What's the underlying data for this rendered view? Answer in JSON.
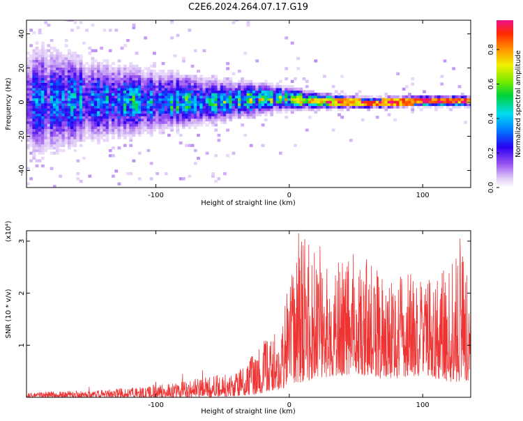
{
  "title": "C2E6.2024.264.07.17.G19",
  "chart_data": [
    {
      "type": "heatmap",
      "xlabel": "Height of straight line (km)",
      "ylabel": "Frequency (Hz)",
      "xlim": [
        -197,
        136
      ],
      "ylim": [
        -50,
        48
      ],
      "xticks": [
        -100,
        0,
        100
      ],
      "xtick_labels": [
        "-100",
        "0",
        "100"
      ],
      "yticks": [
        -40,
        -20,
        0,
        20,
        40
      ],
      "ytick_labels": [
        "-40",
        "-20",
        "0",
        "20",
        "40"
      ],
      "colorbar": {
        "label": "Normalized spectral amplitude",
        "range": [
          0,
          0.97
        ],
        "ticks": [
          0,
          0.2,
          0.4,
          0.6,
          0.8
        ],
        "tick_labels": [
          "0.0",
          "0.2",
          "0.4",
          "0.6",
          "0.8"
        ],
        "colormap": "rainbow (light violet to red)"
      },
      "profile": [
        {
          "x": -190,
          "center": 0,
          "spread": 22,
          "peak": 0.3
        },
        {
          "x": -150,
          "center": 0,
          "spread": 16,
          "peak": 0.35
        },
        {
          "x": -100,
          "center": 0,
          "spread": 12,
          "peak": 0.4
        },
        {
          "x": -50,
          "center": 0,
          "spread": 8,
          "peak": 0.45
        },
        {
          "x": -10,
          "center": 2,
          "spread": 5,
          "peak": 0.55
        },
        {
          "x": 20,
          "center": 0,
          "spread": 3,
          "peak": 0.75
        },
        {
          "x": 60,
          "center": -1,
          "spread": 2,
          "peak": 0.9
        },
        {
          "x": 100,
          "center": 0,
          "spread": 2,
          "peak": 0.92
        },
        {
          "x": 130,
          "center": 0,
          "spread": 2,
          "peak": 0.9
        }
      ]
    },
    {
      "type": "line",
      "xlabel": "Height of straight line (km)",
      "ylabel": "SNR (10 * v/v)",
      "y_multiplier": "(x10⁴)",
      "xlim": [
        -197,
        136
      ],
      "ylim": [
        0,
        3.2
      ],
      "xticks": [
        -100,
        0,
        100
      ],
      "xtick_labels": [
        "-100",
        "0",
        "100"
      ],
      "yticks": [
        1,
        2,
        3
      ],
      "ytick_labels": [
        "1",
        "2",
        "3"
      ],
      "color": "#ee3333",
      "series": [
        {
          "x": [
            -197,
            -180,
            -160,
            -140,
            -120,
            -100,
            -80,
            -60,
            -40,
            -25,
            -15,
            -5,
            0,
            5,
            10,
            20,
            30,
            40,
            50,
            60,
            70,
            80,
            90,
            100,
            110,
            120,
            128,
            136
          ],
          "envelope_high": [
            0.08,
            0.12,
            0.12,
            0.15,
            0.18,
            0.25,
            0.3,
            0.4,
            0.5,
            0.9,
            1.2,
            1.4,
            2.4,
            2.9,
            3.2,
            2.8,
            2.5,
            2.7,
            2.5,
            2.6,
            2.4,
            2.3,
            2.4,
            2.3,
            2.5,
            2.4,
            3.0,
            2.0
          ],
          "envelope_low": [
            0.0,
            0.0,
            0.0,
            0.0,
            0.0,
            0.0,
            0.0,
            0.0,
            0.02,
            0.05,
            0.1,
            0.15,
            0.2,
            0.25,
            0.3,
            0.35,
            0.4,
            0.4,
            0.4,
            0.4,
            0.35,
            0.35,
            0.4,
            0.4,
            0.35,
            0.3,
            0.3,
            0.3
          ],
          "peaks": [
            {
              "x": -150,
              "y": 0.2
            },
            {
              "x": -100,
              "y": 0.3
            },
            {
              "x": -80,
              "y": 0.45
            },
            {
              "x": -65,
              "y": 0.52
            },
            {
              "x": -40,
              "y": 0.38
            },
            {
              "x": 7,
              "y": 3.15
            },
            {
              "x": 12,
              "y": 2.1
            },
            {
              "x": 23,
              "y": 2.9
            },
            {
              "x": 48,
              "y": 2.75
            },
            {
              "x": 58,
              "y": 2.65
            },
            {
              "x": 128,
              "y": 3.05
            }
          ]
        }
      ]
    }
  ]
}
